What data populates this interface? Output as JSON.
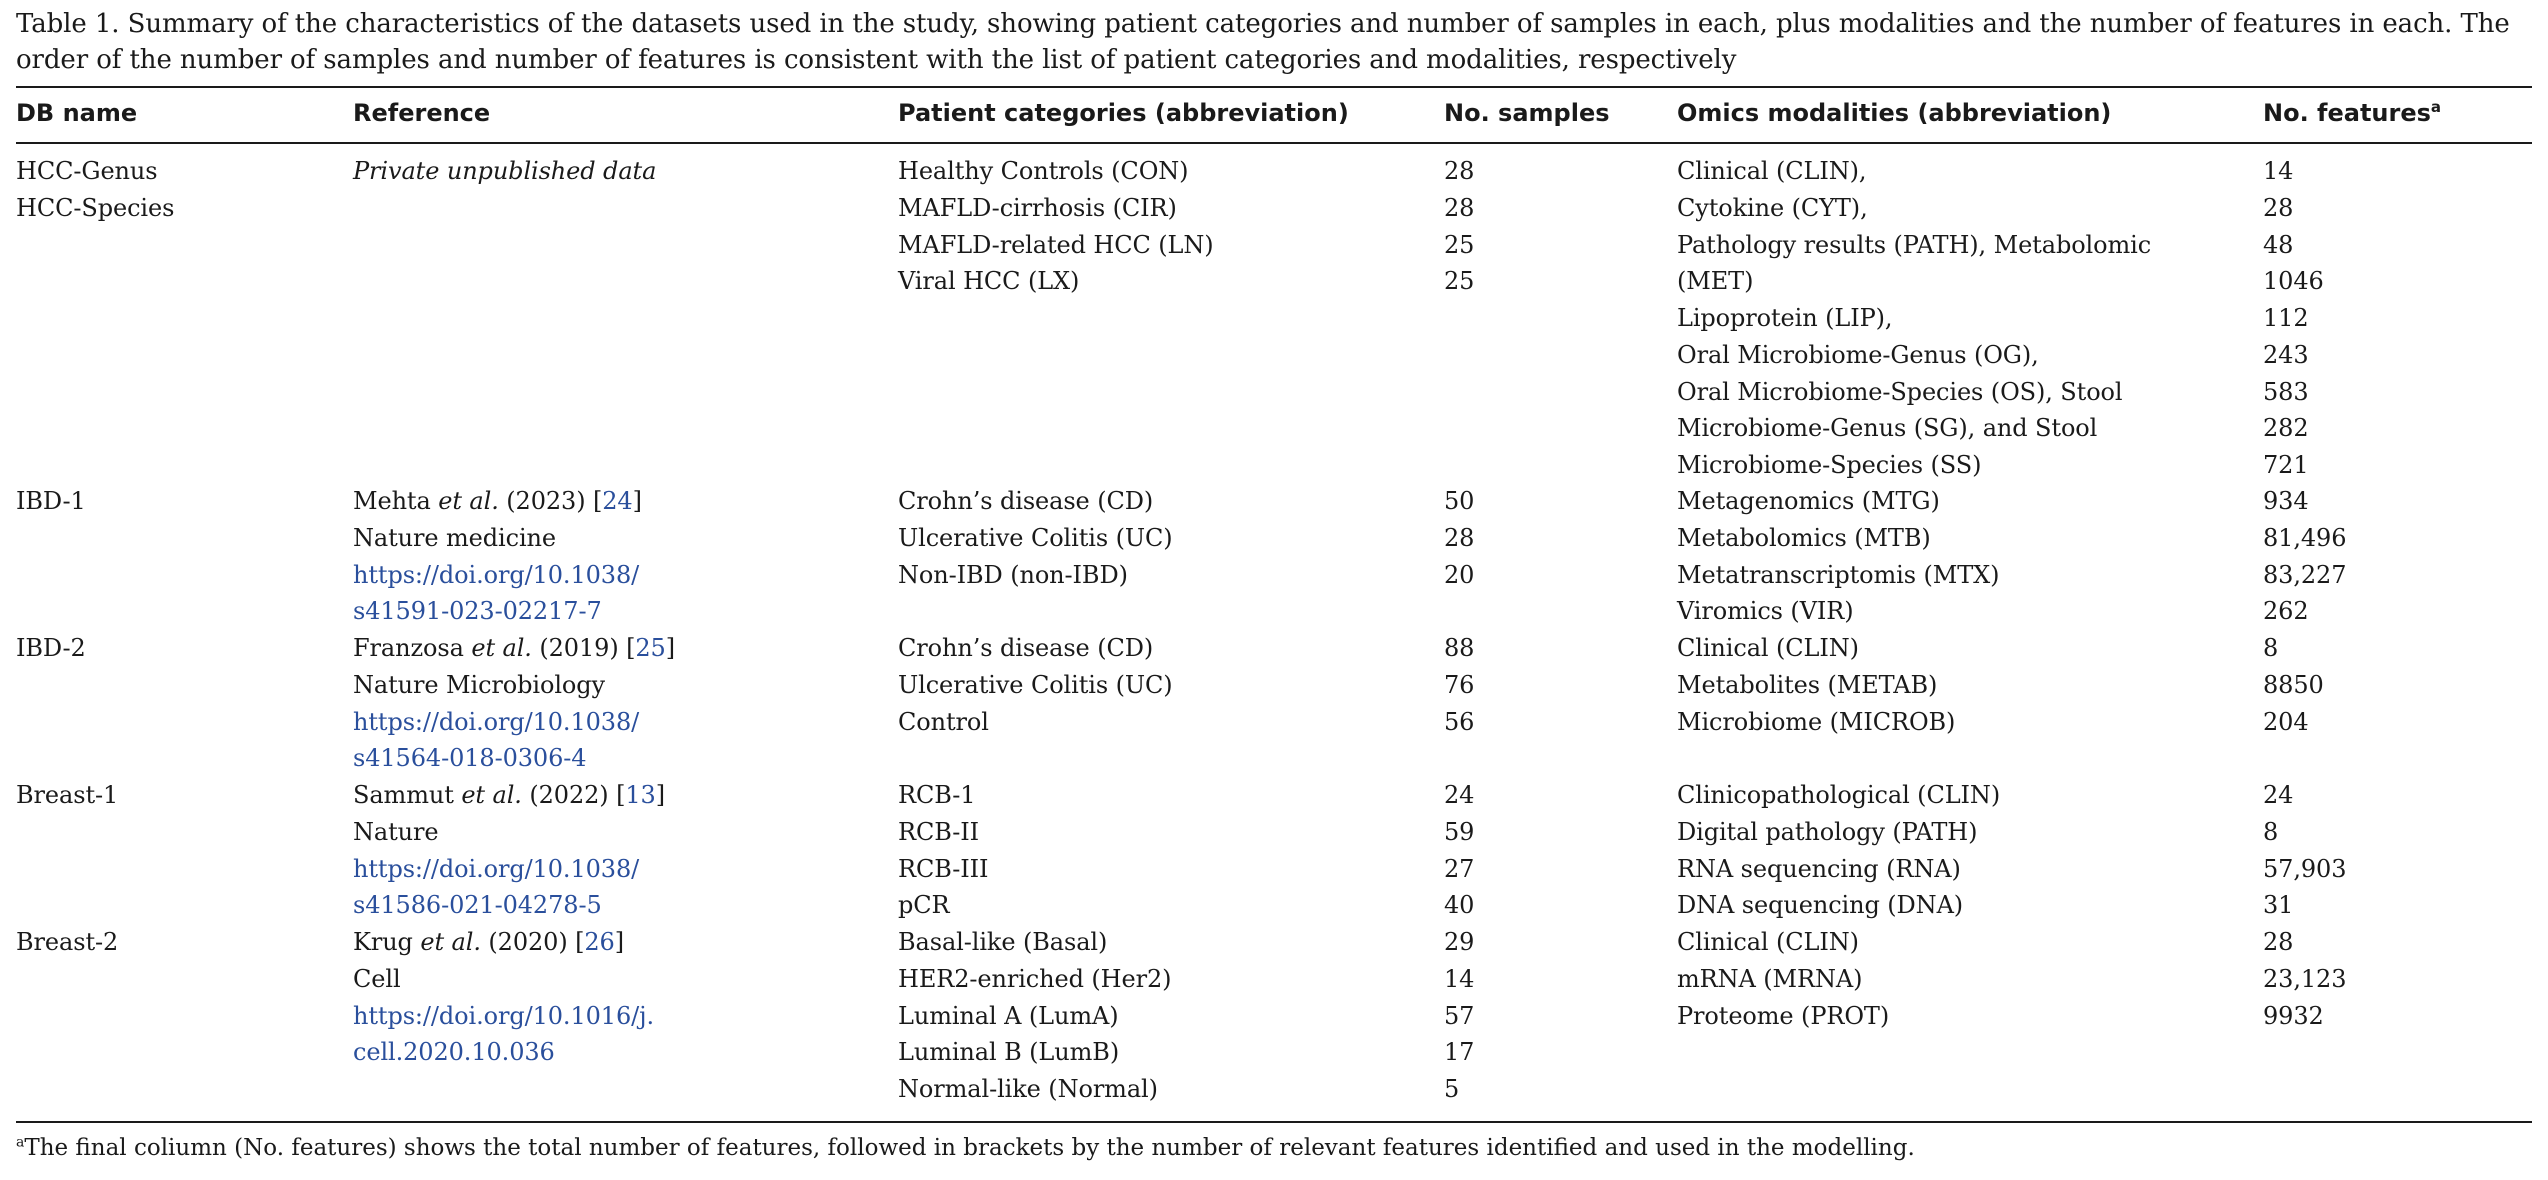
{
  "caption": "Table 1. Summary of the characteristics of the datasets used in the study, showing patient categories and number of samples in each, plus modalities and the number of features in each. The order of the number of samples and number of features is consistent with the list of patient categories and modalities, respectively",
  "columns": {
    "db_name": "DB name",
    "reference": "Reference",
    "patient_categories": "Patient categories (abbreviation)",
    "no_samples": "No. samples",
    "omics_modalities": "Omics modalities (abbreviation)",
    "no_features": "No. features",
    "no_features_mark": "a"
  },
  "groups": [
    {
      "db": [
        "HCC-Genus",
        "HCC-Species"
      ],
      "ref_italic": "Private unpublished data",
      "ref": [],
      "categories": [
        "Healthy Controls (CON)",
        "MAFLD-cirrhosis (CIR)",
        "MAFLD-related HCC (LN)",
        "Viral HCC (LX)"
      ],
      "samples": [
        "28",
        "28",
        "25",
        "25"
      ],
      "samples_offset": 0,
      "modalities": [
        "Clinical (CLIN),",
        "Cytokine (CYT),",
        "Pathology results (PATH), Metabolomic",
        "(MET)",
        "Lipoprotein (LIP),",
        "Oral Microbiome-Genus (OG),",
        "Oral Microbiome-Species (OS), Stool",
        "Microbiome-Genus (SG), and Stool",
        "Microbiome-Species (SS)"
      ],
      "modalities_offset": 0,
      "features": [
        "14",
        "28",
        "48",
        "1046",
        "112",
        "243",
        "583",
        "282",
        "721"
      ],
      "features_offset": 0
    },
    {
      "db": [
        "IBD-1"
      ],
      "ref_authors": "Mehta",
      "ref_etal": "et al.",
      "ref_year": "(2023) [",
      "ref_cite": "24",
      "ref_close": "]",
      "ref_journal": "Nature medicine",
      "ref_links": [
        "https://doi.org/10.1038/",
        "s41591-023-02217-7"
      ],
      "categories": [
        "Crohn’s disease (CD)",
        "Ulcerative Colitis (UC)",
        "Non-IBD (non-IBD)"
      ],
      "samples": [
        "50",
        "28",
        "20"
      ],
      "samples_offset": 0,
      "modalities": [
        "Metagenomics (MTG)",
        "Metabolomics (MTB)",
        "Metatranscriptomis (MTX)",
        "Viromics (VIR)"
      ],
      "modalities_offset": 0,
      "features": [
        "934",
        "81,496",
        "83,227",
        "262"
      ],
      "features_offset": 0
    },
    {
      "db": [
        "IBD-2"
      ],
      "ref_authors": "Franzosa",
      "ref_etal": "et al.",
      "ref_year": "(2019) [",
      "ref_cite": "25",
      "ref_close": "]",
      "ref_journal": "Nature Microbiology",
      "ref_links": [
        "https://doi.org/10.1038/",
        "s41564-018-0306-4"
      ],
      "categories": [
        "Crohn’s disease (CD)",
        "Ulcerative Colitis (UC)",
        "Control"
      ],
      "samples": [
        "88",
        "76",
        "56"
      ],
      "samples_offset": 0,
      "modalities": [
        "Clinical (CLIN)",
        "Metabolites (METAB)",
        "Microbiome (MICROB)"
      ],
      "modalities_offset": 0,
      "features": [
        "8",
        "8850",
        "204"
      ],
      "features_offset": 0
    },
    {
      "db": [
        "Breast-1"
      ],
      "ref_authors": "Sammut",
      "ref_etal": "et al.",
      "ref_year": "(2022) [",
      "ref_cite": "13",
      "ref_close": "]",
      "ref_journal": "Nature",
      "ref_links": [
        "https://doi.org/10.1038/",
        "s41586-021-04278-5"
      ],
      "categories": [
        "RCB-1",
        "RCB-II",
        "RCB-III",
        "pCR"
      ],
      "samples": [
        "24",
        "59",
        "27",
        "40"
      ],
      "samples_offset": 0,
      "modalities": [
        "Clinicopathological (CLIN)",
        "Digital pathology (PATH)",
        "RNA sequencing (RNA)",
        "DNA sequencing (DNA)"
      ],
      "modalities_offset": 0,
      "features": [
        "24",
        "8",
        "57,903",
        "31"
      ],
      "features_offset": 0
    },
    {
      "db": [
        "Breast-2"
      ],
      "ref_authors": "Krug",
      "ref_etal": "et al.",
      "ref_year": "(2020) [",
      "ref_cite": "26",
      "ref_close": "]",
      "ref_journal": "Cell",
      "ref_links": [
        "https://doi.org/10.1016/j.",
        "cell.2020.10.036"
      ],
      "categories": [
        "Basal-like (Basal)",
        "HER2-enriched (Her2)",
        "Luminal A (LumA)",
        "Luminal B (LumB)",
        "Normal-like (Normal)"
      ],
      "samples": [
        "29",
        "14",
        "57",
        "17",
        "5"
      ],
      "samples_offset": 0,
      "modalities": [
        "Clinical (CLIN)",
        "mRNA (MRNA)",
        "Proteome (PROT)"
      ],
      "modalities_offset": 0,
      "features": [
        "28",
        "23,123",
        "9932"
      ],
      "features_offset": 0
    }
  ],
  "footnote": {
    "mark": "a",
    "text": "The final coliumn (No. features) shows the total number of features, followed in brackets by the number of relevant features identified and used in the modelling."
  }
}
